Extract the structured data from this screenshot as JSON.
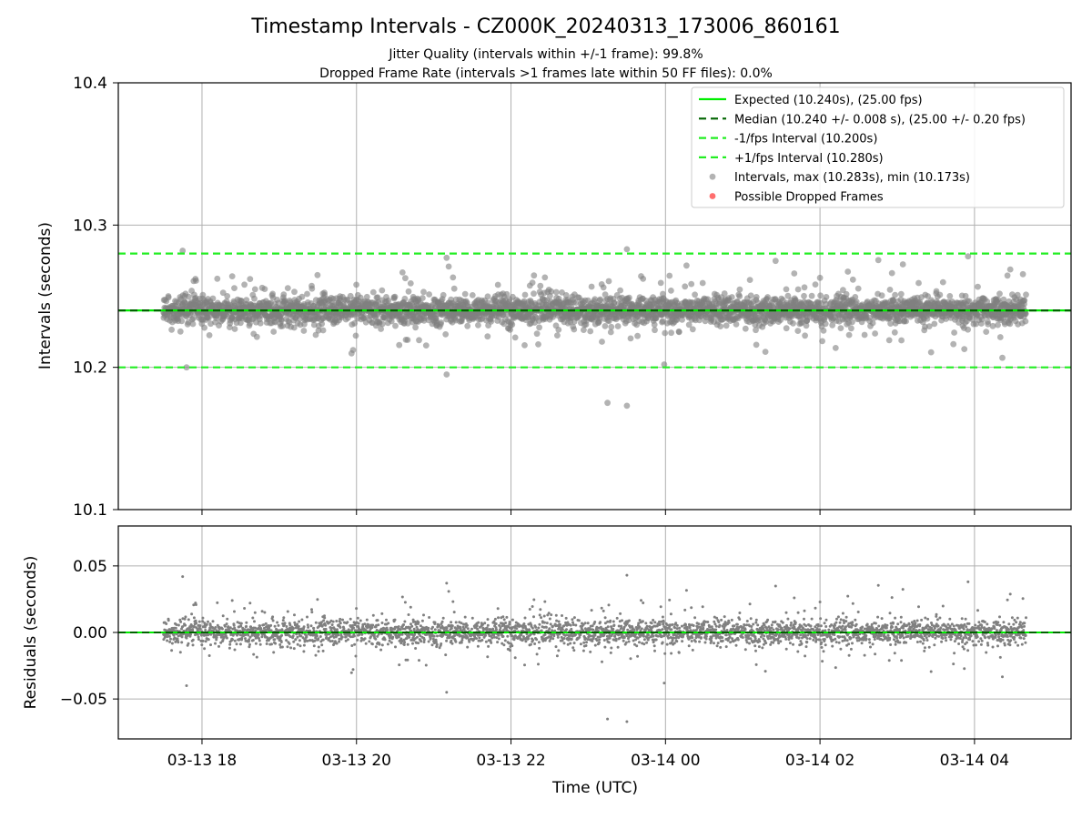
{
  "title": "Timestamp Intervals - CZ000K_20240313_173006_860161",
  "subtitle_1": "Jitter Quality (intervals within +/-1 frame): 99.8%",
  "subtitle_2": "Dropped Frame Rate (intervals >1 frames late within 50 FF files): 0.0%",
  "colors": {
    "expected": "#00ee00",
    "median": "#006400",
    "fps_bounds": "#22ee22",
    "points": "#808080",
    "dropped": "#ff5555",
    "grid": "#b0b0b0"
  },
  "chart_data": [
    {
      "type": "scatter",
      "ylabel": "Intervals (seconds)",
      "xlabel": "",
      "ylim": [
        10.1,
        10.4
      ],
      "y_ticks": [
        10.1,
        10.2,
        10.3,
        10.4
      ],
      "y_tick_labels": [
        "10.1",
        "10.2",
        "10.3",
        "10.4"
      ],
      "grid": true,
      "legend_placement": "top-right",
      "lines": [
        {
          "name": "Expected (10.240s), (25.00 fps)",
          "y": 10.24,
          "style": "solid"
        },
        {
          "name": "Median (10.240 +/- 0.008 s), (25.00 +/- 0.20 fps)",
          "y": 10.24,
          "style": "dashed"
        },
        {
          "name": "-1/fps Interval (10.200s)",
          "y": 10.2,
          "style": "dashed"
        },
        {
          "name": "+1/fps Interval (10.280s)",
          "y": 10.28,
          "style": "dashed"
        }
      ],
      "series": [
        {
          "name": "Intervals, max (10.283s), min (10.173s)",
          "marker": "circle",
          "typical_center": 10.24,
          "typical_spread": 0.008,
          "count": 3400,
          "time_start": "2024-03-13T17:30:06Z",
          "time_end": "2024-03-14T04:40:00Z",
          "notable_points": [
            {
              "t": "2024-03-13T17:45:00Z",
              "y": 10.282
            },
            {
              "t": "2024-03-13T17:48:00Z",
              "y": 10.2
            },
            {
              "t": "2024-03-13T21:10:00Z",
              "y": 10.195
            },
            {
              "t": "2024-03-13T21:10:00Z",
              "y": 10.277
            },
            {
              "t": "2024-03-13T23:15:00Z",
              "y": 10.175
            },
            {
              "t": "2024-03-13T23:30:00Z",
              "y": 10.173
            },
            {
              "t": "2024-03-13T23:30:00Z",
              "y": 10.283
            },
            {
              "t": "2024-03-13T23:59:00Z",
              "y": 10.202
            },
            {
              "t": "2024-03-14T01:40:00Z",
              "y": 10.266
            },
            {
              "t": "2024-03-14T03:55:00Z",
              "y": 10.278
            }
          ]
        },
        {
          "name": "Possible Dropped Frames",
          "marker": "circle",
          "values": []
        }
      ]
    },
    {
      "type": "scatter",
      "ylabel": "Residuals (seconds)",
      "xlabel": "Time (UTC)",
      "ylim": [
        -0.08,
        0.08
      ],
      "y_ticks": [
        -0.05,
        0.0,
        0.05
      ],
      "y_tick_labels": [
        "−0.05",
        "0.00",
        "0.05"
      ],
      "x_ticks": [
        "2024-03-13T18:00:00Z",
        "2024-03-13T20:00:00Z",
        "2024-03-13T22:00:00Z",
        "2024-03-14T00:00:00Z",
        "2024-03-14T02:00:00Z",
        "2024-03-14T04:00:00Z"
      ],
      "x_tick_labels": [
        "03-13 18",
        "03-13 20",
        "03-13 22",
        "03-14 00",
        "03-14 02",
        "03-14 04"
      ],
      "xlim": [
        "2024-03-13T16:55:00Z",
        "2024-03-14T05:15:00Z"
      ],
      "grid": true,
      "lines": [
        {
          "y": 0.0,
          "style": "solid"
        },
        {
          "y": 0.0,
          "style": "dashed"
        }
      ],
      "series": [
        {
          "name": "Residuals",
          "typical_center": 0.0,
          "typical_spread": 0.008
        }
      ]
    }
  ]
}
